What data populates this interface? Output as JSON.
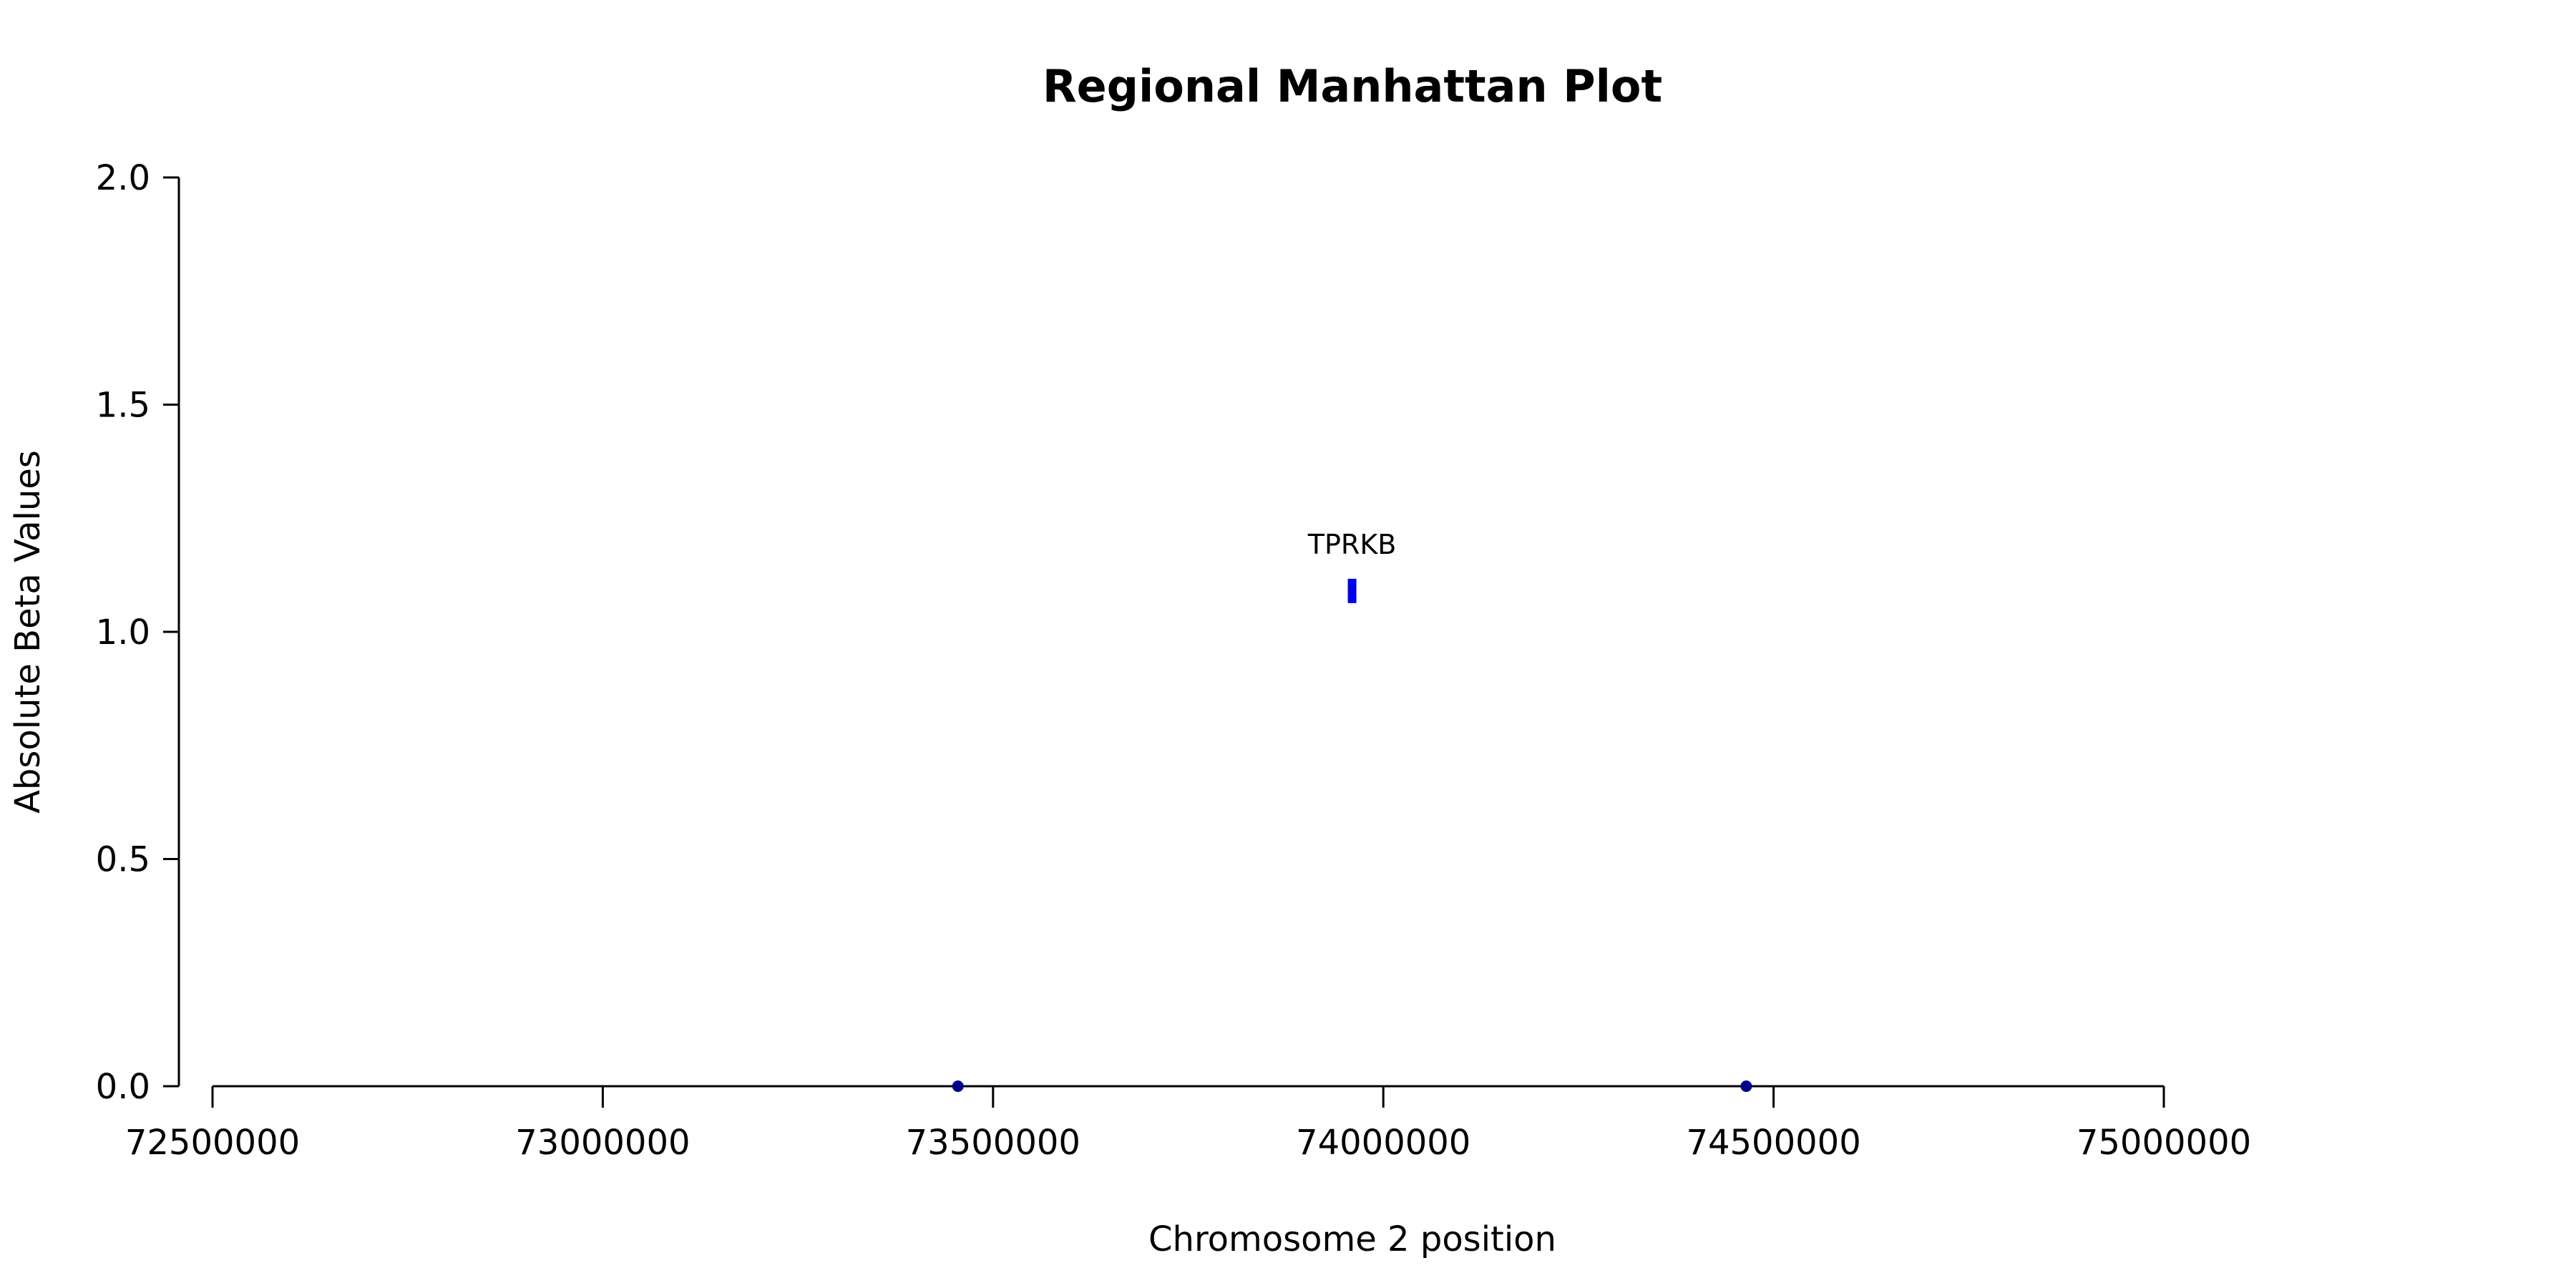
{
  "chart_data": {
    "type": "scatter",
    "title": "Regional Manhattan Plot",
    "xlabel": "Chromosome 2 position",
    "ylabel": "Absolute Beta Values",
    "xlim": [
      72500000,
      75000000
    ],
    "ylim": [
      0,
      2
    ],
    "x_ticks": [
      72500000,
      73000000,
      73500000,
      74000000,
      74500000,
      75000000
    ],
    "x_tick_labels": [
      "72500000",
      "73000000",
      "73500000",
      "74000000",
      "74500000",
      "75000000"
    ],
    "y_ticks": [
      0,
      0.5,
      1.0,
      1.5,
      2.0
    ],
    "y_tick_labels": [
      "0.0",
      "0.5",
      "1.0",
      "1.5",
      "2.0"
    ],
    "grid": false,
    "series": [
      {
        "points": [
          {
            "x": 73455000,
            "y": 0.0,
            "color": "#00008b",
            "marker": "circle"
          },
          {
            "x": 74465000,
            "y": 0.0,
            "color": "#00008b",
            "marker": "circle"
          },
          {
            "x": 73960000,
            "y": 1.09,
            "color": "#0000ee",
            "marker": "bar",
            "label": "TPRKB"
          }
        ]
      }
    ]
  }
}
